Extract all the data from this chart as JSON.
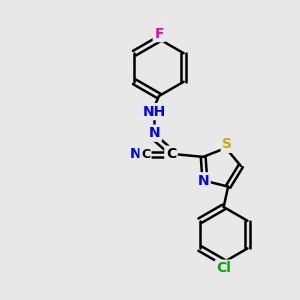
{
  "bg_color": "#e8e8e8",
  "atom_colors": {
    "C": "#000000",
    "N": "#0000ff",
    "S": "#ccaa00",
    "F": "#ff00aa",
    "Cl": "#00aa00",
    "H": "#000000"
  },
  "bond_color": "#000000",
  "bond_width": 1.8,
  "font_size": 10,
  "figsize": [
    3.0,
    3.0
  ],
  "dpi": 100
}
